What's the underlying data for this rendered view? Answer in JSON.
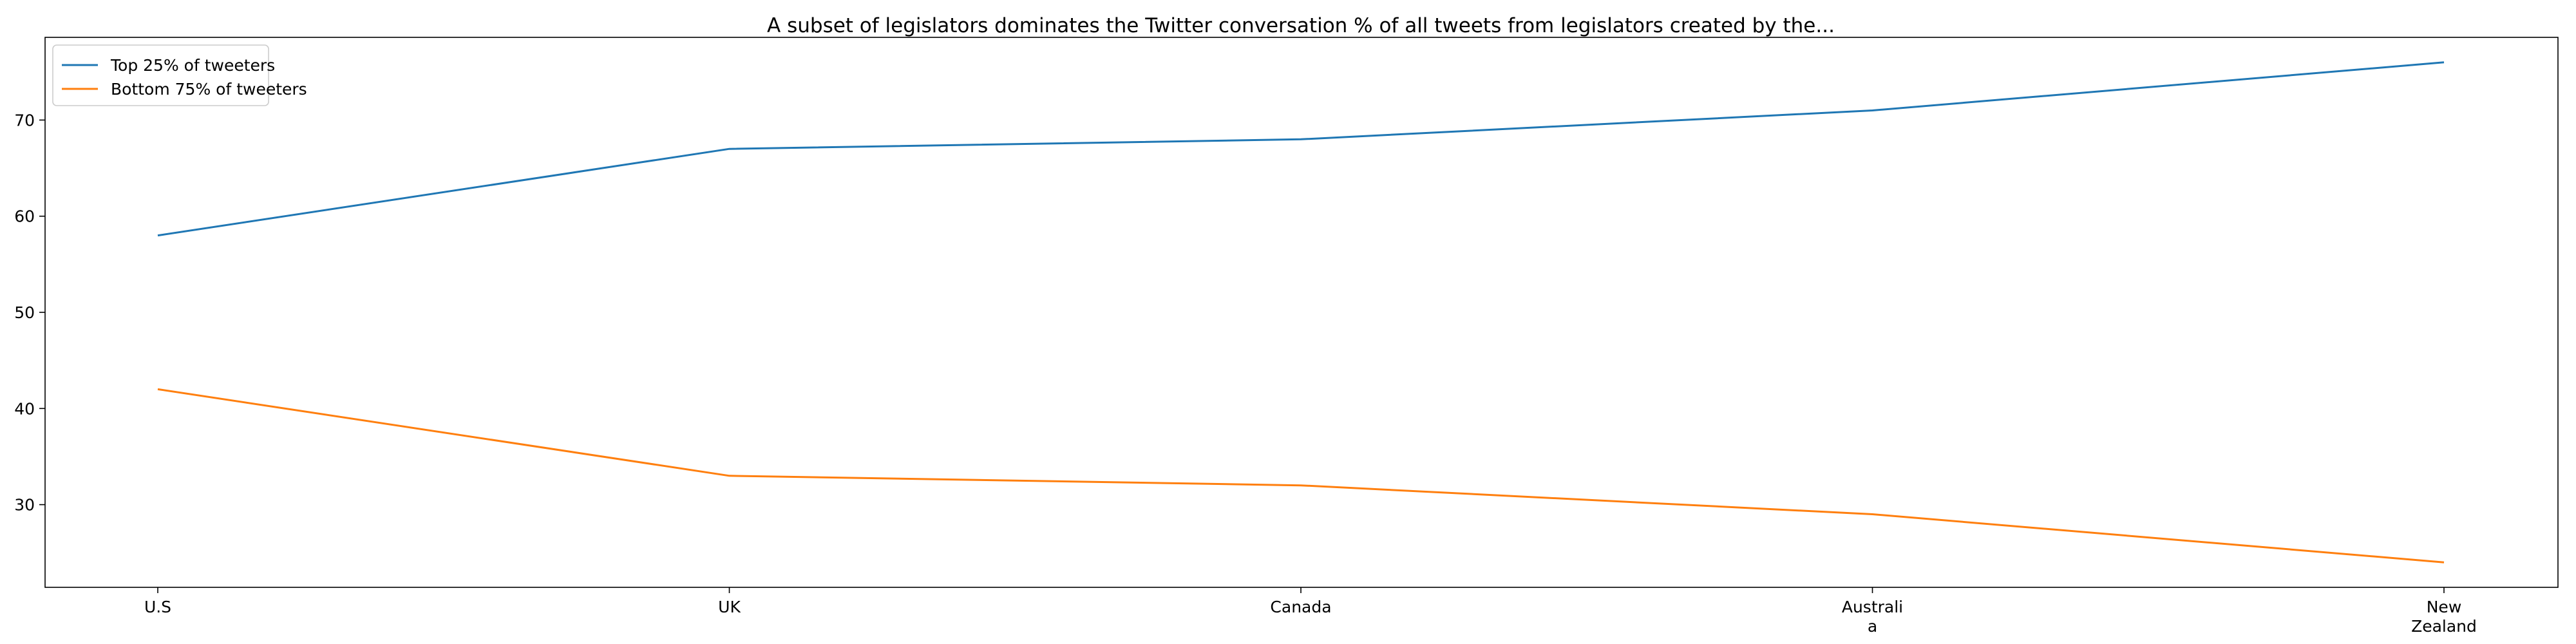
{
  "chart_data": {
    "type": "line",
    "title": "A subset of legislators dominates the Twitter conversation % of all tweets from legislators created by the...",
    "xlabel": "",
    "ylabel": "",
    "categories": [
      [
        "U.S"
      ],
      [
        "UK"
      ],
      [
        "Canada"
      ],
      [
        "Australi",
        "a"
      ],
      [
        "New",
        "Zealand"
      ]
    ],
    "series": [
      {
        "name": "Top 25% of tweeters",
        "color": "#1f77b4",
        "values": [
          58,
          67,
          68,
          71,
          76
        ]
      },
      {
        "name": "Bottom 75% of tweeters",
        "color": "#ff7f0e",
        "values": [
          42,
          33,
          32,
          29,
          24
        ]
      }
    ],
    "ylim": [
      21.4,
      78.6
    ],
    "yticks": [
      30,
      40,
      50,
      60,
      70
    ],
    "grid": false,
    "legend": "upper-left"
  }
}
